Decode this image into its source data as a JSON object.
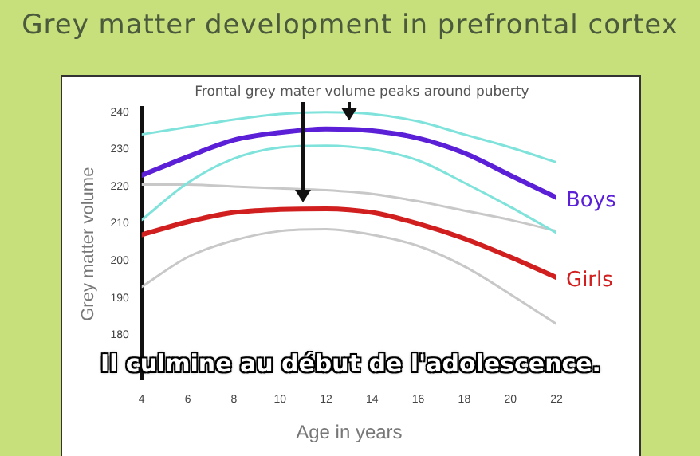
{
  "chart_data": {
    "type": "line",
    "title": "Grey matter development in prefrontal cortex",
    "xlabel": "Age in years",
    "ylabel": "Grey matter volume",
    "x": [
      4,
      6,
      8,
      10,
      12,
      14,
      16,
      18,
      20,
      22
    ],
    "xlim": [
      4,
      22
    ],
    "xticks": [
      4,
      6,
      8,
      10,
      12,
      14,
      16,
      18,
      20,
      22
    ],
    "ylim": [
      168,
      241
    ],
    "yticks": [
      180,
      190,
      200,
      210,
      220,
      230,
      240
    ],
    "grid": false,
    "legend": false,
    "marker": "none",
    "line_style": "solid",
    "series": [
      {
        "color": "#7fe3dc",
        "values": [
          234,
          236,
          238,
          239.5,
          240,
          239.5,
          237.5,
          234,
          230.5,
          226.5
        ]
      },
      {
        "color": "#7fe3dc",
        "values": [
          211,
          221,
          227.5,
          230.5,
          231,
          230,
          227,
          221,
          214.5,
          207.5
        ]
      },
      {
        "color": "#c8c8c8",
        "values": [
          220.5,
          220.5,
          220,
          219.5,
          219,
          218,
          216,
          213.5,
          211,
          208
        ]
      },
      {
        "color": "#c8c8c8",
        "values": [
          193,
          201,
          205.5,
          208,
          208.5,
          207,
          204,
          198.5,
          191,
          183
        ]
      },
      {
        "name": "Boys",
        "color": "#5a1fd6",
        "values": [
          223,
          228,
          232.5,
          234.5,
          235.5,
          235,
          233,
          229,
          223,
          217
        ]
      },
      {
        "name": "Girls",
        "color": "#d11f1f",
        "values": [
          207,
          210.5,
          213,
          213.8,
          214,
          213,
          210,
          206,
          201,
          195.5
        ]
      }
    ],
    "annotations": [
      {
        "text": "Frontal grey mater volume peaks around puberty",
        "x": 13,
        "y": 236
      },
      "Il culmine au début de l'adolescence."
    ]
  }
}
